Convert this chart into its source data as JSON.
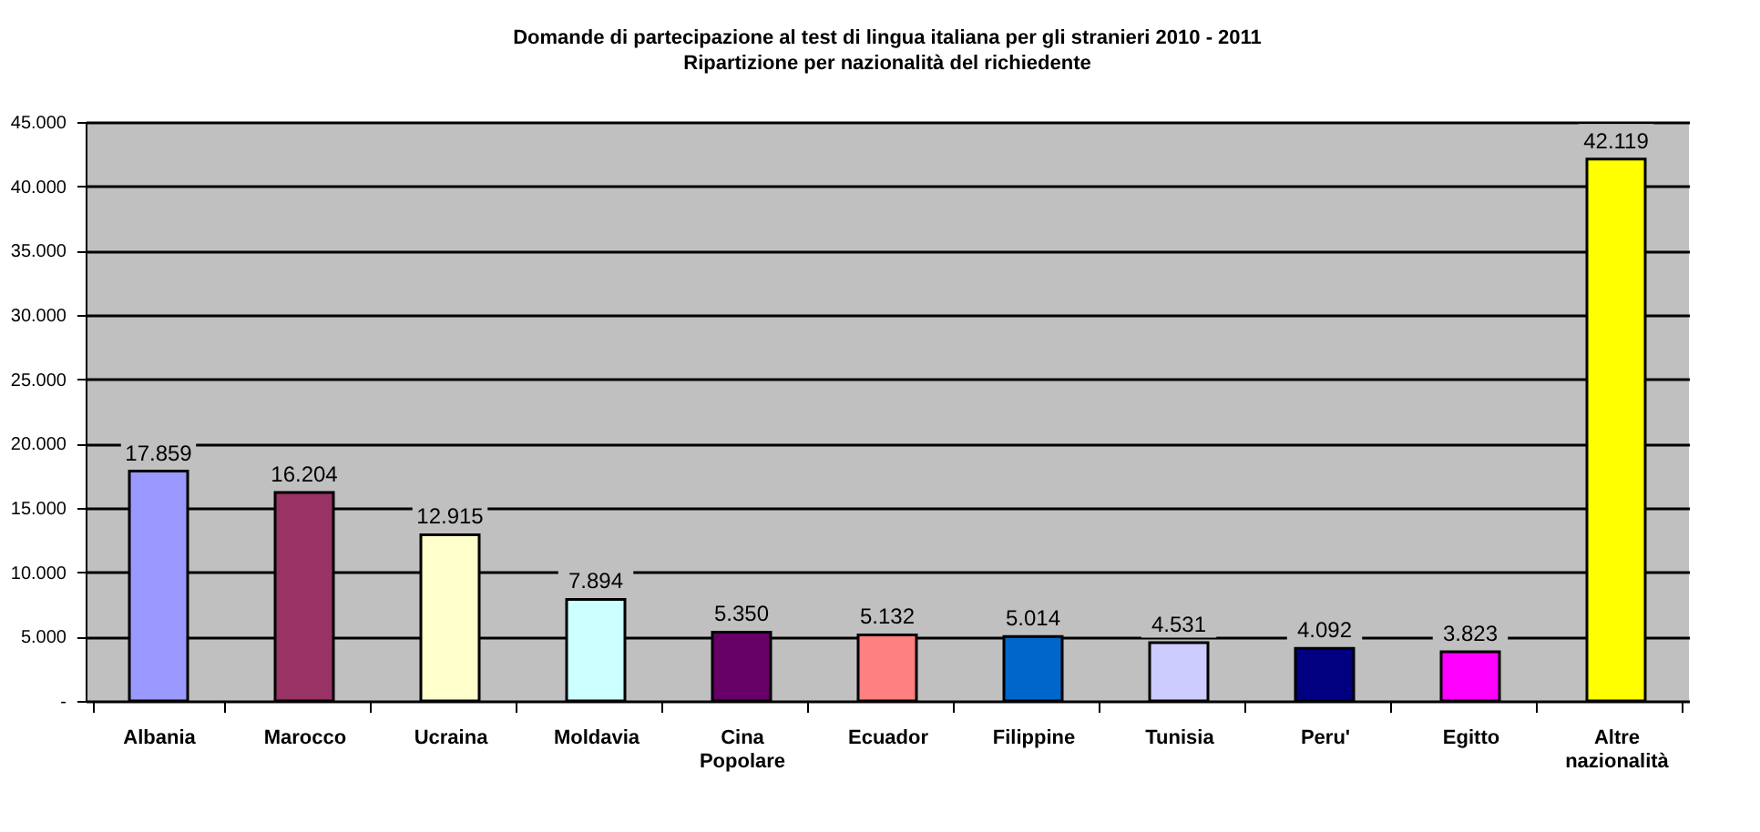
{
  "chart_data": {
    "type": "bar",
    "title": "Domande di partecipazione al test di lingua italiana per gli stranieri 2010 - 2011",
    "subtitle": "Ripartizione per nazionalità del richiedente",
    "categories": [
      "Albania",
      "Marocco",
      "Ucraina",
      "Moldavia",
      "Cina Popolare",
      "Ecuador",
      "Filippine",
      "Tunisia",
      "Peru'",
      "Egitto",
      "Altre nazionalità"
    ],
    "values": [
      17859,
      16204,
      12915,
      7894,
      5350,
      5132,
      5014,
      4531,
      4092,
      3823,
      42119
    ],
    "value_labels": [
      "17.859",
      "16.204",
      "12.915",
      "7.894",
      "5.350",
      "5.132",
      "5.014",
      "4.531",
      "4.092",
      "3.823",
      "42.119"
    ],
    "colors": [
      "#9999ff",
      "#993366",
      "#ffffcc",
      "#ccffff",
      "#660066",
      "#ff8080",
      "#0066cc",
      "#ccccff",
      "#000080",
      "#ff00ff",
      "#ffff00"
    ],
    "ylim": [
      0,
      45000
    ],
    "yticks": [
      {
        "value": 0,
        "label": "-"
      },
      {
        "value": 5000,
        "label": "5.000"
      },
      {
        "value": 10000,
        "label": "10.000"
      },
      {
        "value": 15000,
        "label": "15.000"
      },
      {
        "value": 20000,
        "label": "20.000"
      },
      {
        "value": 25000,
        "label": "25.000"
      },
      {
        "value": 30000,
        "label": "30.000"
      },
      {
        "value": 35000,
        "label": "35.000"
      },
      {
        "value": 40000,
        "label": "40.000"
      },
      {
        "value": 45000,
        "label": "45.000"
      }
    ],
    "grid": "y",
    "legend": false
  }
}
